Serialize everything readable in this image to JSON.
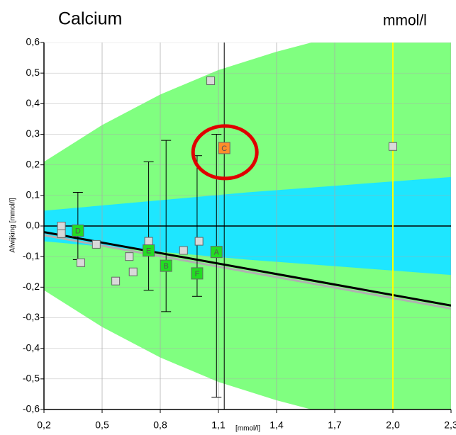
{
  "chart_data": {
    "type": "scatter",
    "title": "Calcium",
    "unit": "mmol/l",
    "x_label": "[mmol/l]",
    "y_label": "Afwijking [mmol/l]",
    "xlim": [
      0.2,
      2.3
    ],
    "ylim": [
      -0.6,
      0.6
    ],
    "xticks": [
      {
        "value": 0.2,
        "label": "0,2"
      },
      {
        "value": 0.5,
        "label": "0,5"
      },
      {
        "value": 0.8,
        "label": "0,8"
      },
      {
        "value": 1.1,
        "label": "1,1"
      },
      {
        "value": 1.4,
        "label": "1,4"
      },
      {
        "value": 1.7,
        "label": "1,7"
      },
      {
        "value": 2.0,
        "label": "2,0"
      },
      {
        "value": 2.3,
        "label": "2,3"
      }
    ],
    "yticks": [
      {
        "value": -0.6,
        "label": "-0,6"
      },
      {
        "value": -0.5,
        "label": "-0,5"
      },
      {
        "value": -0.4,
        "label": "-0,4"
      },
      {
        "value": -0.3,
        "label": "-0,3"
      },
      {
        "value": -0.2,
        "label": "-0,2"
      },
      {
        "value": -0.1,
        "label": "-0,1"
      },
      {
        "value": 0,
        "label": "0,0"
      },
      {
        "value": 0.1,
        "label": "0,1"
      },
      {
        "value": 0.2,
        "label": "0,2"
      },
      {
        "value": 0.3,
        "label": "0,3"
      },
      {
        "value": 0.4,
        "label": "0,4"
      },
      {
        "value": 0.5,
        "label": "0,5"
      },
      {
        "value": 0.6,
        "label": "0,6"
      }
    ],
    "grid": true,
    "bands": [
      {
        "color": "#80ff80",
        "x": [
          0.2,
          0.5,
          0.8,
          1.1,
          1.4,
          1.7,
          2.0,
          2.3
        ],
        "upper": [
          0.21,
          0.33,
          0.43,
          0.51,
          0.57,
          0.62,
          0.66,
          0.7
        ],
        "lower": [
          -0.21,
          -0.33,
          -0.43,
          -0.51,
          -0.57,
          -0.62,
          -0.66,
          -0.7
        ]
      },
      {
        "color": "#1ee6ff",
        "x": [
          0.2,
          1.25,
          2.3
        ],
        "upper": [
          0.05,
          0.11,
          0.16
        ],
        "lower": [
          -0.05,
          -0.11,
          -0.16
        ]
      }
    ],
    "lines": [
      {
        "color": "#b0b0b0",
        "x": [
          0.2,
          2.3
        ],
        "y": [
          -0.03,
          -0.27
        ]
      },
      {
        "color": "#000000",
        "x": [
          0.2,
          2.3
        ],
        "y": [
          -0.02,
          -0.26
        ]
      }
    ],
    "vlines": [
      {
        "x": 2.0,
        "color": "#ffff00"
      },
      {
        "x": 1.13,
        "color": "#000000"
      }
    ],
    "series": [
      {
        "color": "#d9d9d9",
        "x": [
          0.29,
          0.29,
          0.39,
          0.47,
          0.57,
          0.64,
          0.66,
          0.74,
          0.92,
          1.0,
          1.06,
          2.0
        ],
        "values": [
          0.0,
          -0.025,
          -0.12,
          -0.06,
          -0.18,
          -0.1,
          -0.15,
          -0.05,
          -0.08,
          -0.05,
          0.475,
          0.26
        ]
      },
      {
        "color": "#22dd22",
        "x": [
          0.375,
          0.74,
          0.83,
          0.99,
          1.09
        ],
        "values": [
          -0.015,
          -0.08,
          -0.13,
          -0.155,
          -0.085
        ],
        "labels": [
          "D",
          "E",
          "B",
          "F",
          "A"
        ],
        "err_high": [
          0.11,
          0.21,
          0.28,
          0.23,
          0.3
        ],
        "err_low": [
          -0.11,
          -0.21,
          -0.28,
          -0.23,
          -0.56
        ]
      },
      {
        "color": "#ff8c2a",
        "x": [
          1.13
        ],
        "values": [
          0.255
        ],
        "labels": [
          "C"
        ]
      }
    ],
    "highlight_color": "#e00000"
  }
}
